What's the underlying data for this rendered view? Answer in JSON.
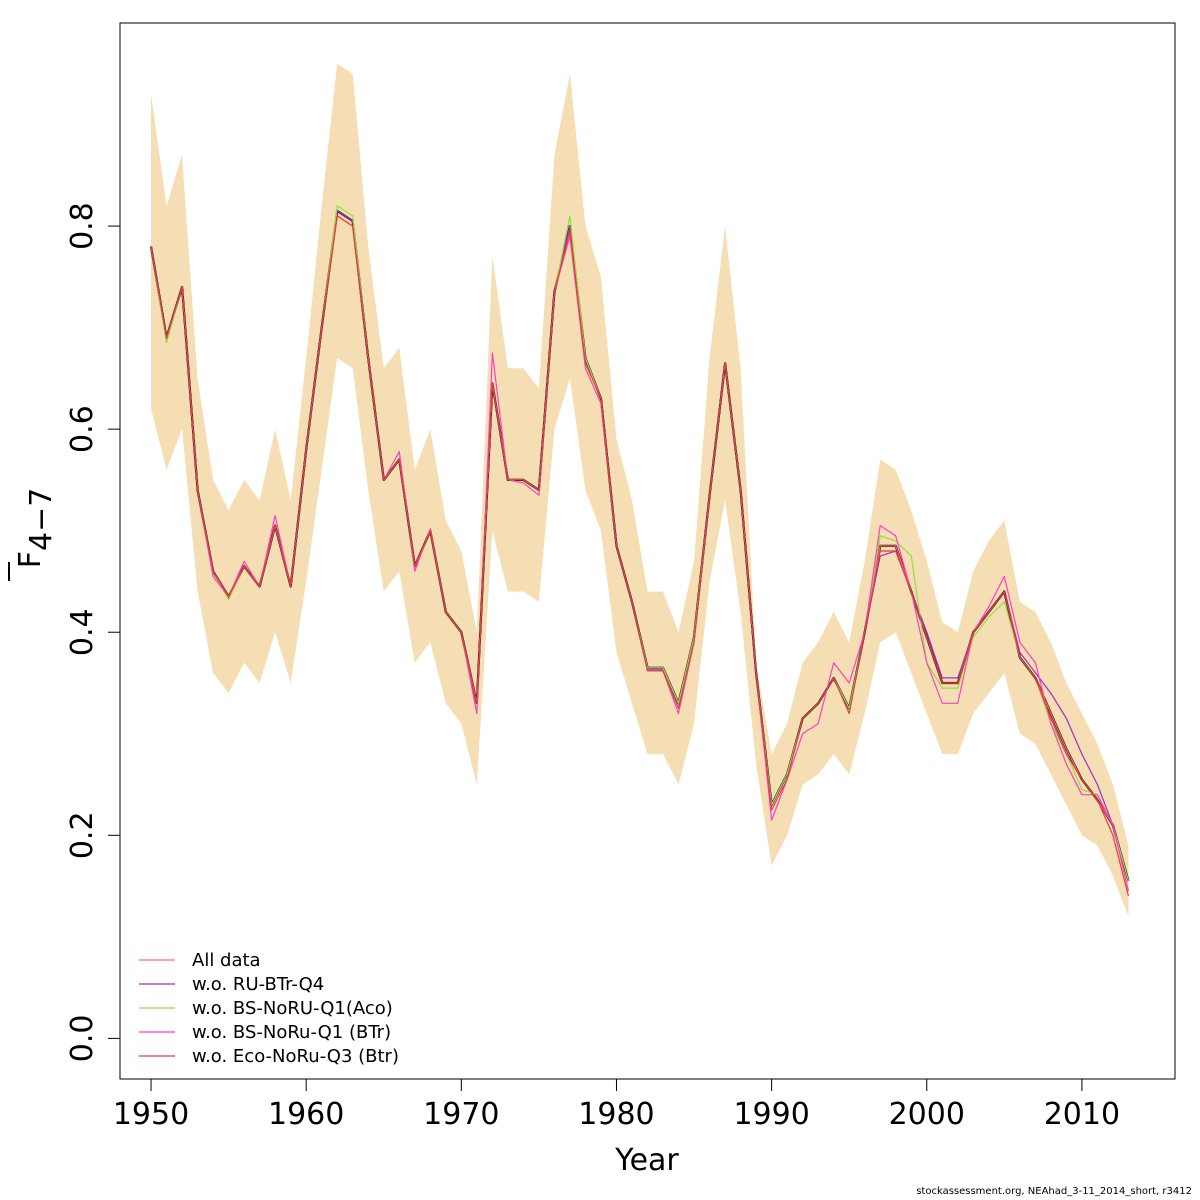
{
  "footer_note": "stockassessment.org, NEAhad_3-11_2014_short, r3412",
  "chart_data": {
    "type": "line",
    "xlabel": "Year",
    "ylabel_base": "F",
    "ylabel_sub": "4−7",
    "xlim": [
      1948,
      2016
    ],
    "ylim": [
      -0.04,
      1.0
    ],
    "xticks": [
      1950,
      1960,
      1970,
      1980,
      1990,
      2000,
      2010
    ],
    "yticks": [
      0.0,
      0.2,
      0.4,
      0.6,
      0.8
    ],
    "ytick_labels": [
      "0.0",
      "0.2",
      "0.4",
      "0.6",
      "0.8"
    ],
    "grid": false,
    "legend_position": "bottom-left",
    "x": [
      1950,
      1951,
      1952,
      1953,
      1954,
      1955,
      1956,
      1957,
      1958,
      1959,
      1960,
      1961,
      1962,
      1963,
      1964,
      1965,
      1966,
      1967,
      1968,
      1969,
      1970,
      1971,
      1972,
      1973,
      1974,
      1975,
      1976,
      1977,
      1978,
      1979,
      1980,
      1981,
      1982,
      1983,
      1984,
      1985,
      1986,
      1987,
      1988,
      1989,
      1990,
      1991,
      1992,
      1993,
      1994,
      1995,
      1996,
      1997,
      1998,
      1999,
      2000,
      2001,
      2002,
      2003,
      2004,
      2005,
      2006,
      2007,
      2008,
      2009,
      2010,
      2011,
      2012,
      2013
    ],
    "band": {
      "color": "#f5deb3",
      "upper": [
        0.93,
        0.82,
        0.87,
        0.65,
        0.55,
        0.52,
        0.55,
        0.53,
        0.6,
        0.53,
        0.67,
        0.82,
        0.96,
        0.95,
        0.78,
        0.66,
        0.68,
        0.56,
        0.6,
        0.51,
        0.48,
        0.4,
        0.77,
        0.66,
        0.66,
        0.64,
        0.87,
        0.95,
        0.8,
        0.75,
        0.59,
        0.53,
        0.44,
        0.44,
        0.4,
        0.47,
        0.67,
        0.8,
        0.66,
        0.37,
        0.28,
        0.31,
        0.37,
        0.39,
        0.42,
        0.39,
        0.47,
        0.57,
        0.56,
        0.52,
        0.47,
        0.41,
        0.4,
        0.46,
        0.49,
        0.51,
        0.43,
        0.42,
        0.39,
        0.35,
        0.32,
        0.29,
        0.25,
        0.19
      ],
      "lower": [
        0.62,
        0.56,
        0.6,
        0.44,
        0.36,
        0.34,
        0.37,
        0.35,
        0.4,
        0.35,
        0.45,
        0.56,
        0.67,
        0.66,
        0.54,
        0.44,
        0.46,
        0.37,
        0.39,
        0.33,
        0.31,
        0.25,
        0.5,
        0.44,
        0.44,
        0.43,
        0.6,
        0.65,
        0.54,
        0.5,
        0.38,
        0.33,
        0.28,
        0.28,
        0.25,
        0.31,
        0.45,
        0.53,
        0.42,
        0.27,
        0.17,
        0.2,
        0.25,
        0.26,
        0.28,
        0.26,
        0.32,
        0.39,
        0.4,
        0.36,
        0.32,
        0.28,
        0.28,
        0.32,
        0.34,
        0.36,
        0.3,
        0.29,
        0.26,
        0.23,
        0.2,
        0.19,
        0.16,
        0.12
      ]
    },
    "series": [
      {
        "name": "All data",
        "color": "#000000",
        "width": 2.2,
        "in_legend": false,
        "values": [
          0.78,
          0.69,
          0.74,
          0.54,
          0.46,
          0.435,
          0.465,
          0.445,
          0.505,
          0.445,
          0.58,
          0.7,
          0.815,
          0.805,
          0.67,
          0.55,
          0.57,
          0.465,
          0.5,
          0.42,
          0.4,
          0.33,
          0.645,
          0.55,
          0.55,
          0.54,
          0.735,
          0.8,
          0.67,
          0.63,
          0.485,
          0.43,
          0.365,
          0.365,
          0.33,
          0.395,
          0.535,
          0.665,
          0.54,
          0.36,
          0.23,
          0.26,
          0.315,
          0.33,
          0.355,
          0.325,
          0.4,
          0.485,
          0.485,
          0.44,
          0.395,
          0.35,
          0.35,
          0.4,
          0.42,
          0.44,
          0.375,
          0.355,
          0.32,
          0.285,
          0.255,
          0.235,
          0.21,
          0.155
        ]
      },
      {
        "name": "All data",
        "color": "#ff6e6e",
        "width": 1.2,
        "in_legend": true,
        "values": [
          0.78,
          0.69,
          0.74,
          0.54,
          0.46,
          0.435,
          0.465,
          0.445,
          0.505,
          0.445,
          0.58,
          0.7,
          0.815,
          0.805,
          0.67,
          0.55,
          0.57,
          0.465,
          0.5,
          0.42,
          0.4,
          0.33,
          0.645,
          0.55,
          0.55,
          0.54,
          0.735,
          0.8,
          0.67,
          0.63,
          0.485,
          0.43,
          0.365,
          0.365,
          0.33,
          0.395,
          0.535,
          0.665,
          0.54,
          0.36,
          0.23,
          0.26,
          0.315,
          0.33,
          0.355,
          0.325,
          0.4,
          0.485,
          0.485,
          0.44,
          0.395,
          0.35,
          0.35,
          0.4,
          0.42,
          0.44,
          0.375,
          0.355,
          0.32,
          0.285,
          0.255,
          0.235,
          0.21,
          0.155
        ]
      },
      {
        "name": "w.o. RU-BTr-Q4",
        "color": "#9b30c8",
        "width": 1.2,
        "in_legend": true,
        "values": [
          0.78,
          0.69,
          0.74,
          0.54,
          0.46,
          0.433,
          0.465,
          0.445,
          0.505,
          0.445,
          0.58,
          0.7,
          0.815,
          0.805,
          0.67,
          0.55,
          0.57,
          0.465,
          0.5,
          0.42,
          0.4,
          0.33,
          0.645,
          0.55,
          0.55,
          0.54,
          0.735,
          0.8,
          0.67,
          0.63,
          0.485,
          0.43,
          0.363,
          0.363,
          0.33,
          0.395,
          0.535,
          0.665,
          0.54,
          0.36,
          0.23,
          0.26,
          0.315,
          0.33,
          0.355,
          0.325,
          0.4,
          0.475,
          0.48,
          0.44,
          0.4,
          0.355,
          0.355,
          0.4,
          0.42,
          0.44,
          0.38,
          0.36,
          0.34,
          0.315,
          0.28,
          0.25,
          0.21,
          0.155
        ]
      },
      {
        "name": "w.o. BS-NoRU-Q1(Aco)",
        "color": "#90e040",
        "width": 1.2,
        "in_legend": true,
        "values": [
          0.78,
          0.685,
          0.74,
          0.54,
          0.46,
          0.432,
          0.465,
          0.445,
          0.505,
          0.445,
          0.58,
          0.7,
          0.82,
          0.81,
          0.67,
          0.55,
          0.57,
          0.465,
          0.5,
          0.42,
          0.4,
          0.33,
          0.645,
          0.55,
          0.55,
          0.54,
          0.735,
          0.81,
          0.67,
          0.63,
          0.485,
          0.43,
          0.365,
          0.365,
          0.33,
          0.395,
          0.535,
          0.665,
          0.54,
          0.36,
          0.23,
          0.26,
          0.315,
          0.33,
          0.355,
          0.325,
          0.4,
          0.495,
          0.49,
          0.475,
          0.37,
          0.345,
          0.345,
          0.395,
          0.415,
          0.43,
          0.375,
          0.355,
          0.31,
          0.28,
          0.245,
          0.24,
          0.21,
          0.155
        ]
      },
      {
        "name": "w.o. BS-NoRu-Q1 (BTr)",
        "color": "#ff40c0",
        "width": 1.2,
        "in_legend": true,
        "values": [
          0.78,
          0.69,
          0.74,
          0.54,
          0.455,
          0.435,
          0.47,
          0.445,
          0.515,
          0.445,
          0.58,
          0.7,
          0.81,
          0.8,
          0.67,
          0.55,
          0.578,
          0.46,
          0.502,
          0.42,
          0.4,
          0.32,
          0.675,
          0.55,
          0.547,
          0.535,
          0.735,
          0.79,
          0.66,
          0.625,
          0.485,
          0.43,
          0.362,
          0.362,
          0.32,
          0.39,
          0.535,
          0.665,
          0.54,
          0.36,
          0.215,
          0.255,
          0.3,
          0.31,
          0.37,
          0.35,
          0.4,
          0.505,
          0.495,
          0.44,
          0.37,
          0.33,
          0.33,
          0.4,
          0.425,
          0.455,
          0.39,
          0.37,
          0.31,
          0.27,
          0.24,
          0.24,
          0.21,
          0.145
        ]
      },
      {
        "name": "w.o. Eco-NoRu-Q3 (Btr)",
        "color": "#e83a3a",
        "width": 1.2,
        "in_legend": true,
        "values": [
          0.78,
          0.69,
          0.74,
          0.54,
          0.46,
          0.435,
          0.465,
          0.445,
          0.505,
          0.445,
          0.58,
          0.7,
          0.81,
          0.8,
          0.67,
          0.55,
          0.57,
          0.465,
          0.5,
          0.42,
          0.4,
          0.33,
          0.645,
          0.55,
          0.55,
          0.54,
          0.735,
          0.795,
          0.665,
          0.63,
          0.485,
          0.43,
          0.362,
          0.362,
          0.325,
          0.39,
          0.535,
          0.665,
          0.54,
          0.36,
          0.225,
          0.255,
          0.315,
          0.33,
          0.355,
          0.32,
          0.4,
          0.48,
          0.48,
          0.44,
          0.395,
          0.35,
          0.35,
          0.4,
          0.42,
          0.44,
          0.375,
          0.355,
          0.315,
          0.28,
          0.255,
          0.235,
          0.2,
          0.14
        ]
      }
    ]
  }
}
